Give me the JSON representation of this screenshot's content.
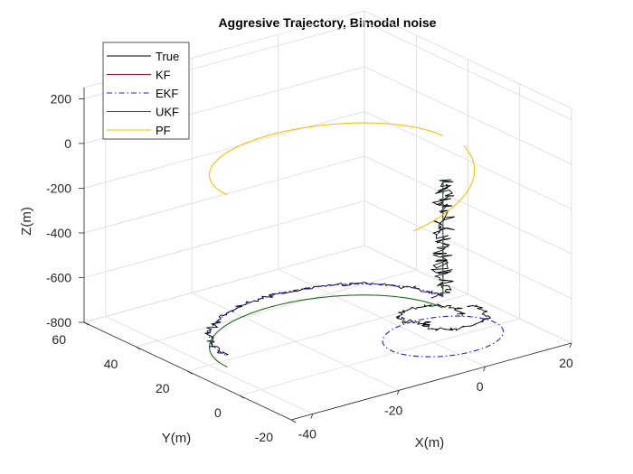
{
  "chart_data": {
    "type": "line",
    "projection": "3d",
    "title": "Aggresive Trajectory, Bimodal noise",
    "xlabel": "X(m)",
    "ylabel": "Y(m)",
    "zlabel": "Z(m)",
    "xlim": [
      -45,
      20
    ],
    "ylim": [
      -20,
      60
    ],
    "zlim": [
      -800,
      250
    ],
    "xticks": [
      "-40",
      "-20",
      "0",
      "20"
    ],
    "yticks": [
      "-20",
      "0",
      "20",
      "40",
      "60"
    ],
    "zticks": [
      "-800",
      "-600",
      "-400",
      "-200",
      "0",
      "200"
    ],
    "grid": true,
    "legend": {
      "placement": "top-left",
      "entries": [
        "True",
        "KF",
        "EKF",
        "UKF",
        "PF"
      ]
    },
    "series": [
      {
        "name": "True",
        "color": "#000000",
        "style": "solid",
        "noisy": true,
        "segments": [
          {
            "kind": "vertical",
            "x": 10,
            "y": 13,
            "z": [
              -720,
              -200
            ]
          },
          {
            "kind": "arc",
            "center": [
              -15,
              13
            ],
            "radius": 25,
            "angles_deg": [
              0,
              180
            ],
            "z": -720
          },
          {
            "kind": "spiral",
            "center": [
              5,
              5
            ],
            "radius": 10,
            "z": [
              -760,
              -720
            ]
          }
        ]
      },
      {
        "name": "KF",
        "color": "#a2142f",
        "style": "solid",
        "segments": []
      },
      {
        "name": "EKF",
        "color": "#1f1fcf",
        "style": "dashdot",
        "segments": [
          {
            "kind": "vertical",
            "x": 10,
            "y": 13,
            "z": [
              -640,
              -200
            ]
          },
          {
            "kind": "arc",
            "center": [
              -15,
              13
            ],
            "radius": 25,
            "angles_deg": [
              0,
              180
            ],
            "z": -720
          },
          {
            "kind": "arc",
            "center": [
              -2,
              -7
            ],
            "radius": 12,
            "angles_deg": [
              -90,
              270
            ],
            "z": -725
          }
        ]
      },
      {
        "name": "UKF",
        "color": "#1f6b1f",
        "style": "solid",
        "segments": [
          {
            "kind": "vertical",
            "x": 10,
            "y": 13,
            "z": [
              -720,
              -200
            ]
          },
          {
            "kind": "arc",
            "center": [
              -15,
              13
            ],
            "radius": 25,
            "angles_deg": [
              0,
              180
            ],
            "z": -770
          }
        ]
      },
      {
        "name": "PF",
        "color": "#f2c200",
        "style": "solid",
        "segments": [
          {
            "kind": "arc",
            "center": [
              -15,
              13
            ],
            "radius": 25,
            "angles_deg": [
              0,
              180
            ],
            "z": 0
          },
          {
            "kind": "arc",
            "center": [
              -5,
              5
            ],
            "radius": 15,
            "angles_deg": [
              0,
              -110
            ],
            "z": [
              0,
              -200
            ]
          }
        ]
      }
    ]
  }
}
